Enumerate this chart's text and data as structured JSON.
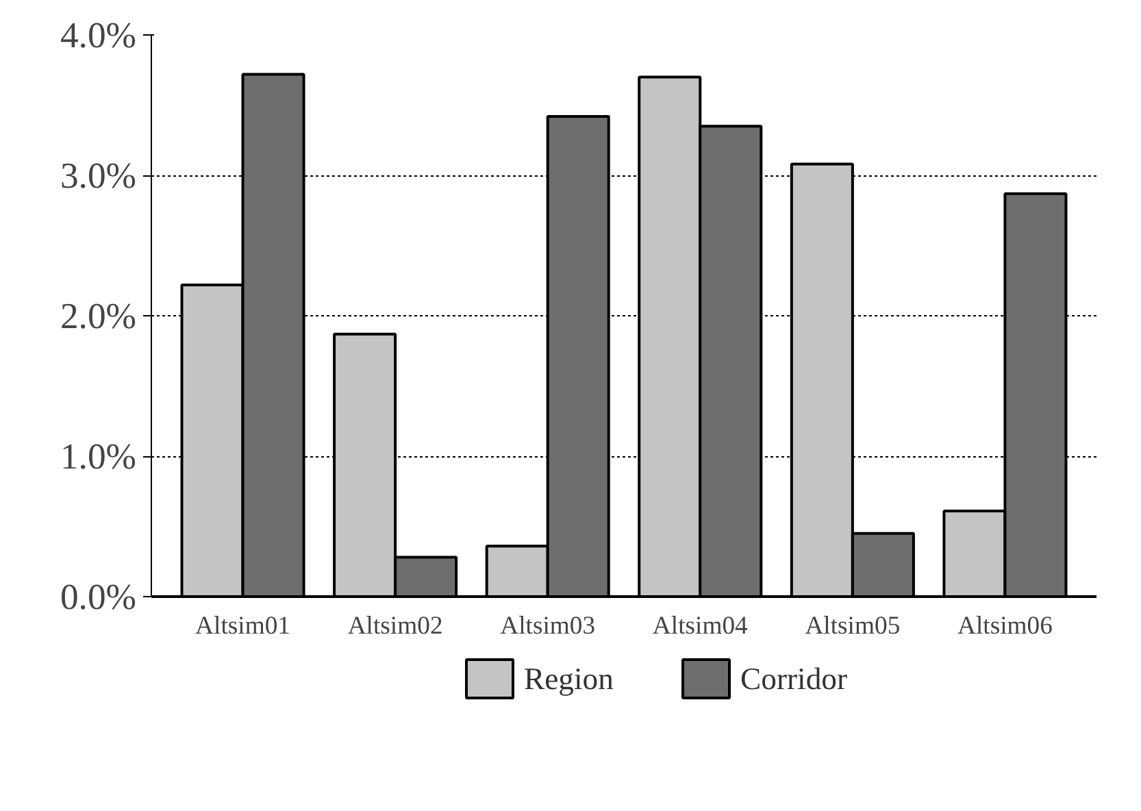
{
  "chart_data": {
    "type": "bar",
    "categories": [
      "Altsim01",
      "Altsim02",
      "Altsim03",
      "Altsim04",
      "Altsim05",
      "Altsim06"
    ],
    "series": [
      {
        "name": "Region",
        "color": "#c4c4c4",
        "values": [
          2.22,
          1.87,
          0.36,
          3.7,
          3.08,
          0.61
        ]
      },
      {
        "name": "Corridor",
        "color": "#6e6e6e",
        "values": [
          3.72,
          0.28,
          3.42,
          3.35,
          0.45,
          2.87
        ]
      }
    ],
    "ylim": [
      0,
      4
    ],
    "yticks": [
      {
        "value": 0,
        "label": "0.0%"
      },
      {
        "value": 1,
        "label": "1.0%"
      },
      {
        "value": 2,
        "label": "2.0%"
      },
      {
        "value": 3,
        "label": "3.0%"
      },
      {
        "value": 4,
        "label": "4.0%"
      }
    ],
    "grid": "y",
    "legend": "bottom"
  }
}
